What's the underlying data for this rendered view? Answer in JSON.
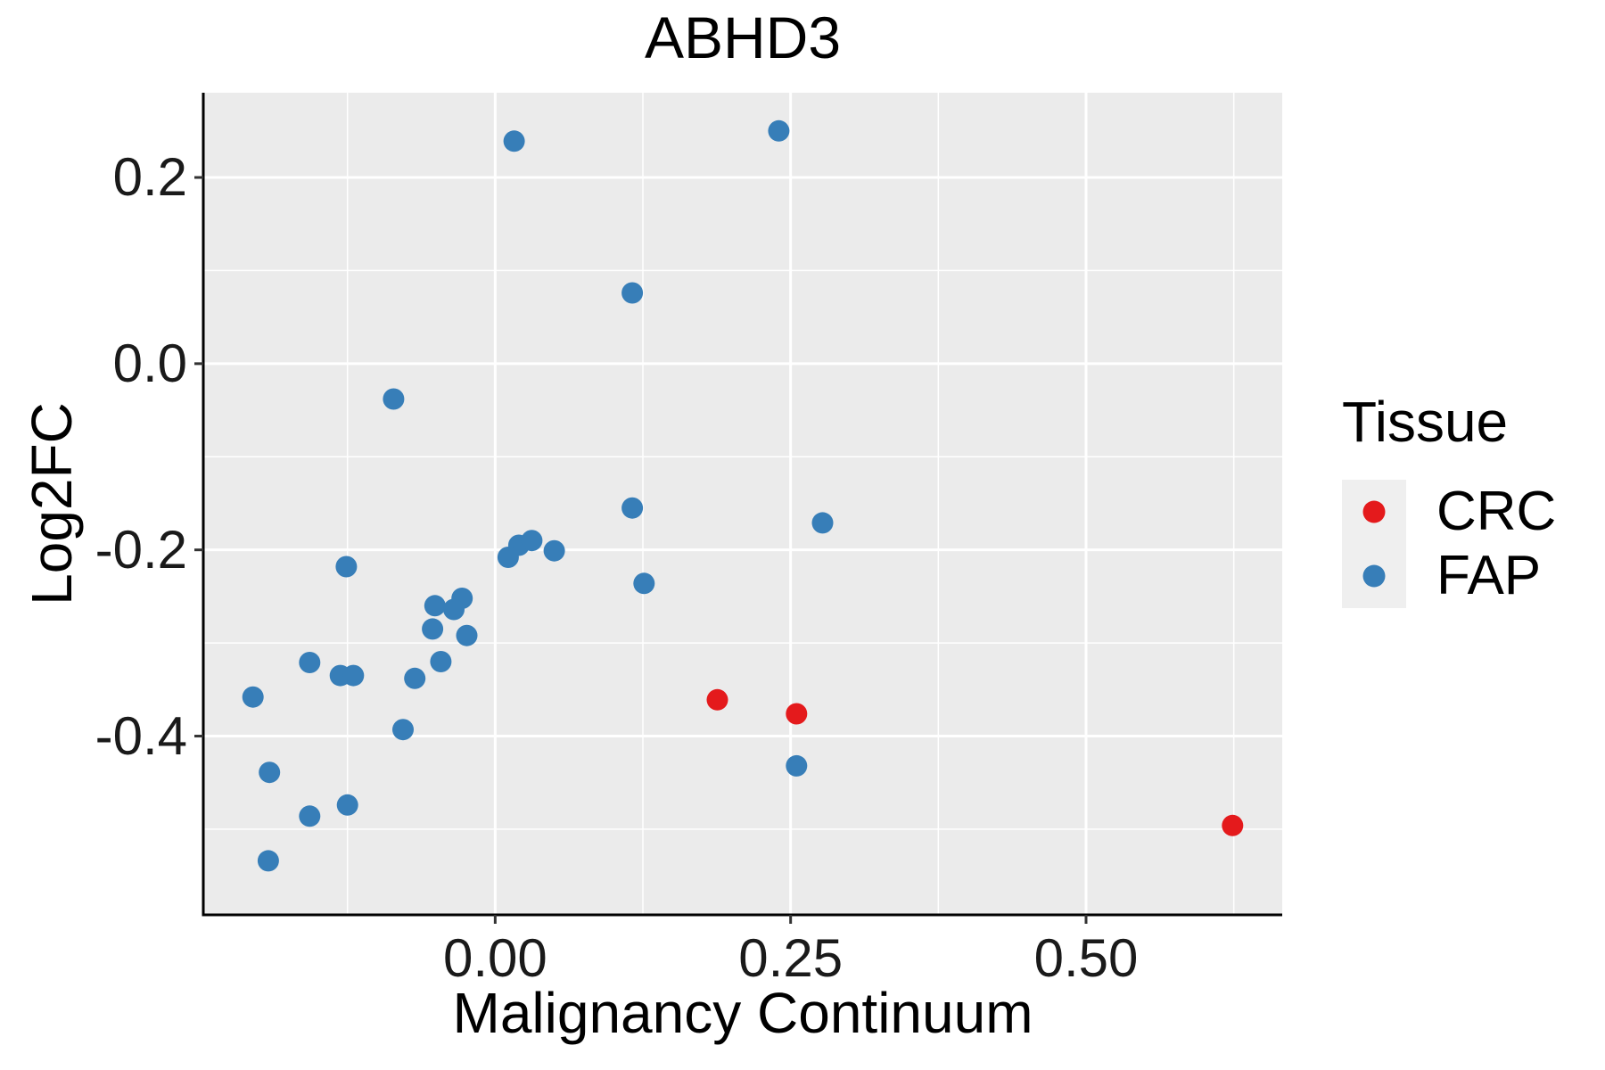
{
  "page": {
    "background": "#FFFFFF"
  },
  "chart_data": {
    "type": "scatter",
    "title": "ABHD3",
    "xlabel": "Malignancy Continuum",
    "ylabel": "Log2FC",
    "xlim": [
      -0.247,
      0.666
    ],
    "ylim": [
      -0.592,
      0.291
    ],
    "x_major_ticks": [
      {
        "value": 0.0,
        "label": "0.00"
      },
      {
        "value": 0.25,
        "label": "0.25"
      },
      {
        "value": 0.5,
        "label": "0.50"
      }
    ],
    "y_major_ticks": [
      {
        "value": 0.2,
        "label": "0.2"
      },
      {
        "value": 0.0,
        "label": "0.0"
      },
      {
        "value": -0.2,
        "label": "-0.2"
      },
      {
        "value": -0.4,
        "label": "-0.4"
      }
    ],
    "x_minor_ticks": [
      -0.125,
      0.125,
      0.375,
      0.625
    ],
    "y_minor_ticks": [
      0.1,
      -0.1,
      -0.3,
      -0.5
    ],
    "grid": true,
    "legend_position": "right",
    "panel_color": "#EBEBEB",
    "grid_color": "#FFFFFF",
    "axis_color": "#000000",
    "legend": {
      "title": "Tissue",
      "entries": [
        {
          "name": "CRC",
          "color": "#E41A1C"
        },
        {
          "name": "FAP",
          "color": "#377EB8"
        }
      ]
    },
    "series": [
      {
        "name": "FAP",
        "color": "#377EB8",
        "points": [
          [
            0.016,
            0.239
          ],
          [
            0.24,
            0.25
          ],
          [
            0.116,
            0.076
          ],
          [
            -0.086,
            -0.038
          ],
          [
            -0.126,
            -0.218
          ],
          [
            -0.051,
            -0.26
          ],
          [
            -0.028,
            -0.252
          ],
          [
            -0.035,
            -0.264
          ],
          [
            -0.053,
            -0.285
          ],
          [
            -0.024,
            -0.292
          ],
          [
            -0.157,
            -0.321
          ],
          [
            -0.131,
            -0.335
          ],
          [
            -0.12,
            -0.335
          ],
          [
            -0.068,
            -0.338
          ],
          [
            -0.046,
            -0.32
          ],
          [
            -0.205,
            -0.358
          ],
          [
            -0.078,
            -0.393
          ],
          [
            -0.191,
            -0.439
          ],
          [
            -0.157,
            -0.486
          ],
          [
            -0.125,
            -0.474
          ],
          [
            -0.192,
            -0.534
          ],
          [
            0.02,
            -0.195
          ],
          [
            0.011,
            -0.208
          ],
          [
            0.031,
            -0.19
          ],
          [
            0.05,
            -0.201
          ],
          [
            0.116,
            -0.155
          ],
          [
            0.126,
            -0.236
          ],
          [
            0.277,
            -0.171
          ],
          [
            0.255,
            -0.432
          ]
        ]
      },
      {
        "name": "CRC",
        "color": "#E41A1C",
        "points": [
          [
            0.188,
            -0.361
          ],
          [
            0.255,
            -0.376
          ],
          [
            0.624,
            -0.496
          ]
        ]
      }
    ]
  }
}
